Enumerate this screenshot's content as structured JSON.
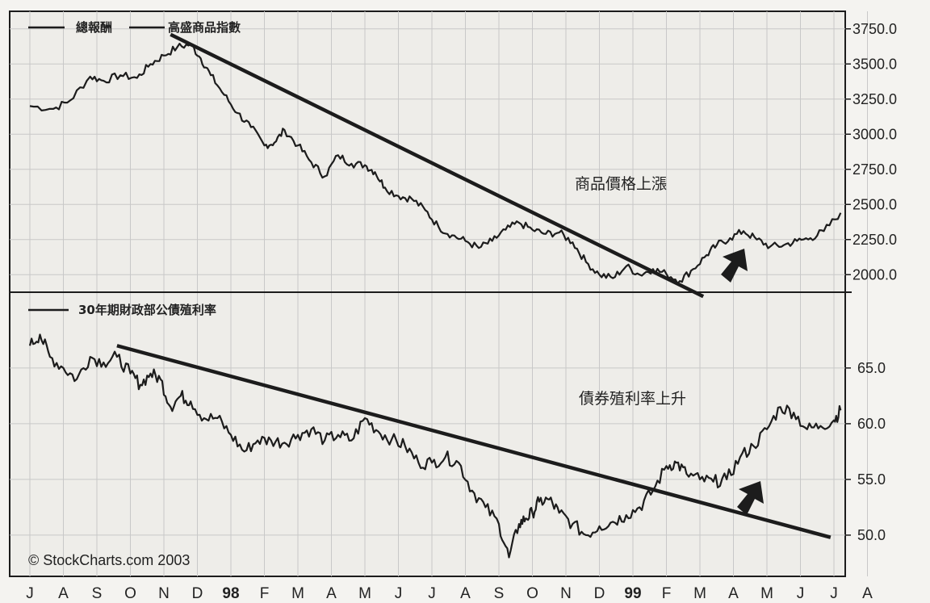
{
  "chart_data": [
    {
      "type": "line",
      "panel": "top",
      "legend": [
        "總報酬",
        "高盛商品指數"
      ],
      "ylim": [
        1875,
        3875
      ],
      "yticks": [
        2000,
        2250,
        2500,
        2750,
        3000,
        3250,
        3500,
        3750
      ],
      "ytick_labels": [
        "2000.0",
        "2250.0",
        "2500.0",
        "2750.0",
        "3000.0",
        "3250.0",
        "3500.0",
        "3750.0"
      ],
      "annotation": "商品價格上漲",
      "series": [
        {
          "x": [
            0,
            0.7,
            1.2,
            1.8,
            2.2,
            2.7,
            3.2,
            3.6,
            4,
            4.4,
            4.8,
            5.1,
            5.4,
            5.8,
            6.2,
            6.6,
            7,
            7.3,
            7.6,
            8,
            8.4,
            8.8,
            9.2,
            9.6,
            10,
            10.3,
            10.6,
            11,
            11.4,
            11.8,
            12.2,
            12.6,
            13,
            13.4,
            13.8,
            14.2,
            14.6,
            15,
            15.4,
            15.8,
            16.2,
            16.6,
            17,
            17.4,
            17.8,
            18.2,
            18.6,
            19,
            19.4,
            19.8,
            20.2,
            20.5,
            20.9,
            21.3,
            21.7,
            22.1,
            22.5,
            22.9,
            23.3,
            23.7,
            24.2
          ],
          "y": [
            3200,
            3180,
            3240,
            3410,
            3380,
            3420,
            3400,
            3500,
            3560,
            3620,
            3640,
            3540,
            3420,
            3280,
            3150,
            3050,
            2920,
            2940,
            3030,
            2920,
            2800,
            2700,
            2850,
            2790,
            2780,
            2730,
            2620,
            2560,
            2540,
            2460,
            2340,
            2280,
            2240,
            2190,
            2240,
            2320,
            2370,
            2320,
            2290,
            2300,
            2230,
            2090,
            2000,
            1975,
            2060,
            2000,
            2040,
            2005,
            1955,
            2040,
            2140,
            2210,
            2260,
            2310,
            2250,
            2200,
            2210,
            2240,
            2260,
            2310,
            2440
          ]
        }
      ],
      "trendline": {
        "x": [
          4.2,
          20.1
        ],
        "y": [
          3710,
          1845
        ]
      }
    },
    {
      "type": "line",
      "panel": "bottom",
      "legend": [
        "30年期財政部公債殖利率"
      ],
      "ylim": [
        46.3,
        71.8
      ],
      "yticks": [
        50,
        55,
        60,
        65
      ],
      "ytick_labels": [
        "50.0",
        "55.0",
        "60.0",
        "65.0"
      ],
      "annotation": "債券殖利率上升",
      "series": [
        {
          "x": [
            0,
            0.3,
            0.6,
            1,
            1.4,
            1.8,
            2.2,
            2.6,
            3,
            3.3,
            3.6,
            3.9,
            4.2,
            4.5,
            4.8,
            5.2,
            5.6,
            6,
            6.4,
            6.8,
            7.2,
            7.6,
            8,
            8.4,
            8.8,
            9.2,
            9.6,
            10,
            10.4,
            10.8,
            11.2,
            11.6,
            12,
            12.4,
            12.8,
            13.2,
            13.6,
            14,
            14.3,
            14.6,
            14.8,
            15,
            15.2,
            15.5,
            15.8,
            16.2,
            16.6,
            17,
            17.4,
            17.8,
            18.2,
            18.6,
            19,
            19.3,
            19.6,
            20,
            20.4,
            20.8,
            21.2,
            21.6,
            22,
            22.4,
            22.8,
            23.2,
            23.6,
            24,
            24.2
          ],
          "y": [
            67,
            68,
            66,
            65,
            64,
            66,
            65.5,
            66,
            64.5,
            63.5,
            64.5,
            64,
            61.5,
            62.5,
            62,
            60.5,
            60.5,
            59,
            57.5,
            58.5,
            58.5,
            58.3,
            59,
            59.5,
            58.5,
            59,
            58.5,
            60.5,
            59.3,
            58.6,
            58,
            56.5,
            56.5,
            57,
            56.5,
            54,
            52.5,
            51,
            48,
            51,
            51.5,
            52,
            53,
            53.2,
            52,
            51,
            50,
            50.8,
            51.2,
            51.8,
            52.5,
            54,
            56.2,
            56.5,
            55.5,
            55,
            54.8,
            55,
            57,
            58,
            59.5,
            61.5,
            61,
            59.5,
            59.8,
            60.3,
            61.2
          ]
        }
      ],
      "trendline": {
        "x": [
          2.6,
          23.9
        ],
        "y": [
          67,
          49.8
        ]
      }
    }
  ],
  "x_axis": {
    "months": [
      "J",
      "A",
      "S",
      "O",
      "N",
      "D",
      "98",
      "F",
      "M",
      "A",
      "M",
      "J",
      "J",
      "A",
      "S",
      "O",
      "N",
      "D",
      "99",
      "F",
      "M",
      "A",
      "M",
      "J",
      "J",
      "A"
    ]
  },
  "credit": "© StockCharts.com 2003",
  "colors": {
    "line": "#1c1c1c",
    "grid": "#c8c8c8",
    "background": "#eeede9",
    "arrow": "#1c1c1c"
  }
}
